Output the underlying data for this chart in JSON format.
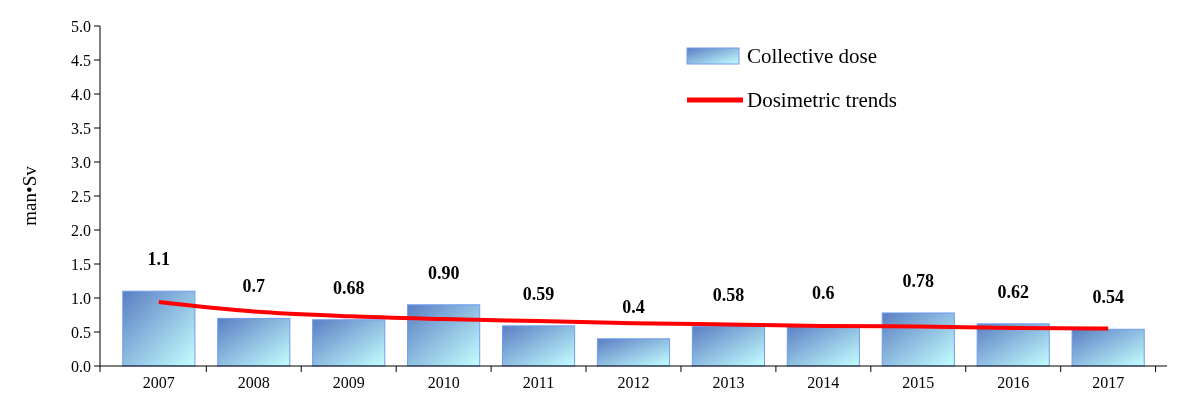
{
  "chart_data": {
    "type": "bar",
    "ylabel": "man•Sv",
    "categories": [
      "2007",
      "2008",
      "2009",
      "2010",
      "2011",
      "2012",
      "2013",
      "2014",
      "2015",
      "2016",
      "2017"
    ],
    "series": [
      {
        "name": "Collective dose",
        "color": "#6f9cf2",
        "values": [
          1.1,
          0.7,
          0.68,
          0.9,
          0.59,
          0.4,
          0.58,
          0.6,
          0.78,
          0.62,
          0.54
        ],
        "value_labels": [
          "1.1",
          "0.7",
          "0.68",
          "0.90",
          "0.59",
          "0.4",
          "0.58",
          "0.6",
          "0.78",
          "0.62",
          "0.54"
        ]
      },
      {
        "name": "Dosimetric trends",
        "type": "line",
        "color": "#ff0000",
        "values": [
          0.94,
          0.8,
          0.73,
          0.69,
          0.66,
          0.63,
          0.61,
          0.59,
          0.58,
          0.56,
          0.55
        ]
      }
    ],
    "ylim": [
      0,
      5
    ],
    "yticks": [
      {
        "value": 0,
        "label": "0.0"
      },
      {
        "value": 0.5,
        "label": "0.5"
      },
      {
        "value": 1,
        "label": "1.0"
      },
      {
        "value": 1.5,
        "label": "1.5"
      },
      {
        "value": 2,
        "label": "2.0"
      },
      {
        "value": 2.5,
        "label": "2.5"
      },
      {
        "value": 3,
        "label": "3.0"
      },
      {
        "value": 3.5,
        "label": "3.5"
      },
      {
        "value": 4,
        "label": "4.0"
      },
      {
        "value": 4.5,
        "label": "4.5"
      },
      {
        "value": 5,
        "label": "5.0"
      }
    ],
    "legend": "top right",
    "grid": false,
    "marker": "none",
    "line_style": "solid"
  }
}
